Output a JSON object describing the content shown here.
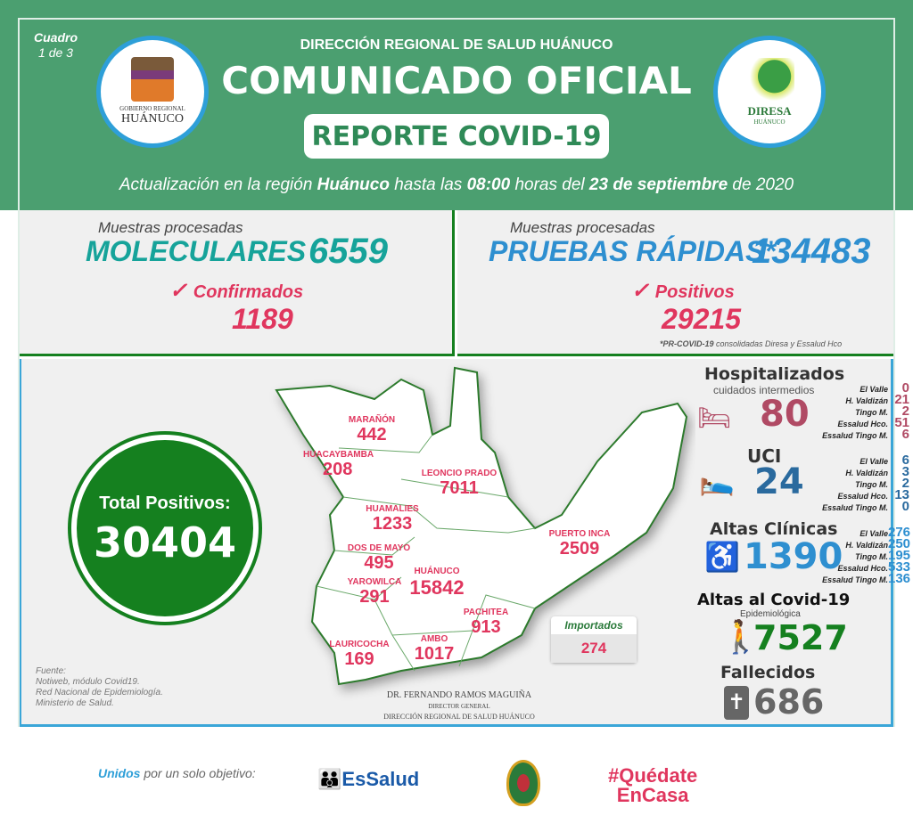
{
  "header": {
    "cuadro": "Cuadro",
    "cuadro_num": "1 de 3",
    "org": "DIRECCIÓN REGIONAL DE SALUD HUÁNUCO",
    "title": "COMUNICADO OFICIAL",
    "subtitle": "REPORTE COVID-19",
    "update_pre": "Actualización en la región ",
    "update_region": "Huánuco",
    "update_mid": " hasta las ",
    "update_time": "08:00",
    "update_mid2": " horas del ",
    "update_date": "23 de septiembre",
    "update_post": " de 2020",
    "logo_left": {
      "line1": "GOBIERNO REGIONAL",
      "line2": "HUÁNUCO"
    },
    "logo_right": {
      "line1": "DIRESA",
      "line2": "HUÁNUCO"
    }
  },
  "moleculares": {
    "label": "Muestras procesadas",
    "title": "MOLECULARES",
    "value": "6559",
    "sub_label": "Confirmados",
    "sub_value": "1189"
  },
  "rapidas": {
    "label": "Muestras procesadas",
    "title": "PRUEBAS RÁPIDAS*",
    "value": "134483",
    "sub_label": "Positivos",
    "sub_value": "29215",
    "note_bold": "*PR-COVID-19",
    "note": " consolidadas Diresa y Essalud Hco"
  },
  "total": {
    "label": "Total Positivos:",
    "value": "30404"
  },
  "districts": [
    {
      "name": "MARAÑÓN",
      "value": "442"
    },
    {
      "name": "HUACAYBAMBA",
      "value": "208"
    },
    {
      "name": "LEONCIO PRADO",
      "value": "7011"
    },
    {
      "name": "HUAMALIES",
      "value": "1233"
    },
    {
      "name": "DOS DE MAYO",
      "value": "495"
    },
    {
      "name": "PUERTO INCA",
      "value": "2509"
    },
    {
      "name": "YAROWILCA",
      "value": "291"
    },
    {
      "name": "HUÁNUCO",
      "value": "15842"
    },
    {
      "name": "PACHITEA",
      "value": "913"
    },
    {
      "name": "LAURICOCHA",
      "value": "169"
    },
    {
      "name": "AMBO",
      "value": "1017"
    }
  ],
  "importados": {
    "label": "Importados",
    "value": "274"
  },
  "fuente": [
    "Fuente:",
    "Notiweb, módulo Covid19.",
    "Red Nacional de Epidemiología.",
    "Ministerio de Salud."
  ],
  "signature": {
    "name": "DR. FERNANDO RAMOS MAGUIÑA",
    "role": "DIRECTOR GENERAL",
    "org": "DIRECCIÓN REGIONAL DE SALUD HUÁNUCO"
  },
  "hospitalizados": {
    "title": "Hospitalizados",
    "sub": "cuidados intermedios",
    "value": "80",
    "rows": [
      {
        "k": "El Valle",
        "v": "0"
      },
      {
        "k": "H. Valdizán",
        "v": "21"
      },
      {
        "k": "Tingo M.",
        "v": "2"
      },
      {
        "k": "Essalud Hco.",
        "v": "51"
      },
      {
        "k": "Essalud Tingo M.",
        "v": "6"
      }
    ]
  },
  "uci": {
    "title": "UCI",
    "value": "24",
    "rows": [
      {
        "k": "El Valle",
        "v": "6"
      },
      {
        "k": "H. Valdizán",
        "v": "3"
      },
      {
        "k": "Tingo M.",
        "v": "2"
      },
      {
        "k": "Essalud Hco.",
        "v": "13"
      },
      {
        "k": "Essalud Tingo M.",
        "v": "0"
      }
    ]
  },
  "altas": {
    "title": "Altas Clínicas",
    "value": "1390",
    "rows": [
      {
        "k": "El Valle",
        "v": "276"
      },
      {
        "k": "H. Valdizán",
        "v": "250"
      },
      {
        "k": "Tingo M.",
        "v": "195"
      },
      {
        "k": "Essalud Hco.",
        "v": "533"
      },
      {
        "k": "Essalud Tingo M.",
        "v": "136"
      }
    ]
  },
  "altas_covid": {
    "title": "Altas al Covid-19",
    "sub": "Epidemiológica",
    "value": "7527"
  },
  "fallecidos": {
    "title": "Fallecidos",
    "value": "686"
  },
  "footer": {
    "unidos": "Unidos",
    "slogan": " por un solo objetivo:",
    "essalud": "EsSalud",
    "hashtag1": "#Quédate",
    "hashtag2": "EnCasa"
  },
  "colors": {
    "header_green": "#4b9f70",
    "teal": "#16a39a",
    "blue": "#2e8fd0",
    "red": "#e0365e",
    "dark_green": "#15801f",
    "maroon": "#b04a64",
    "uci_blue": "#2a6a9e"
  }
}
